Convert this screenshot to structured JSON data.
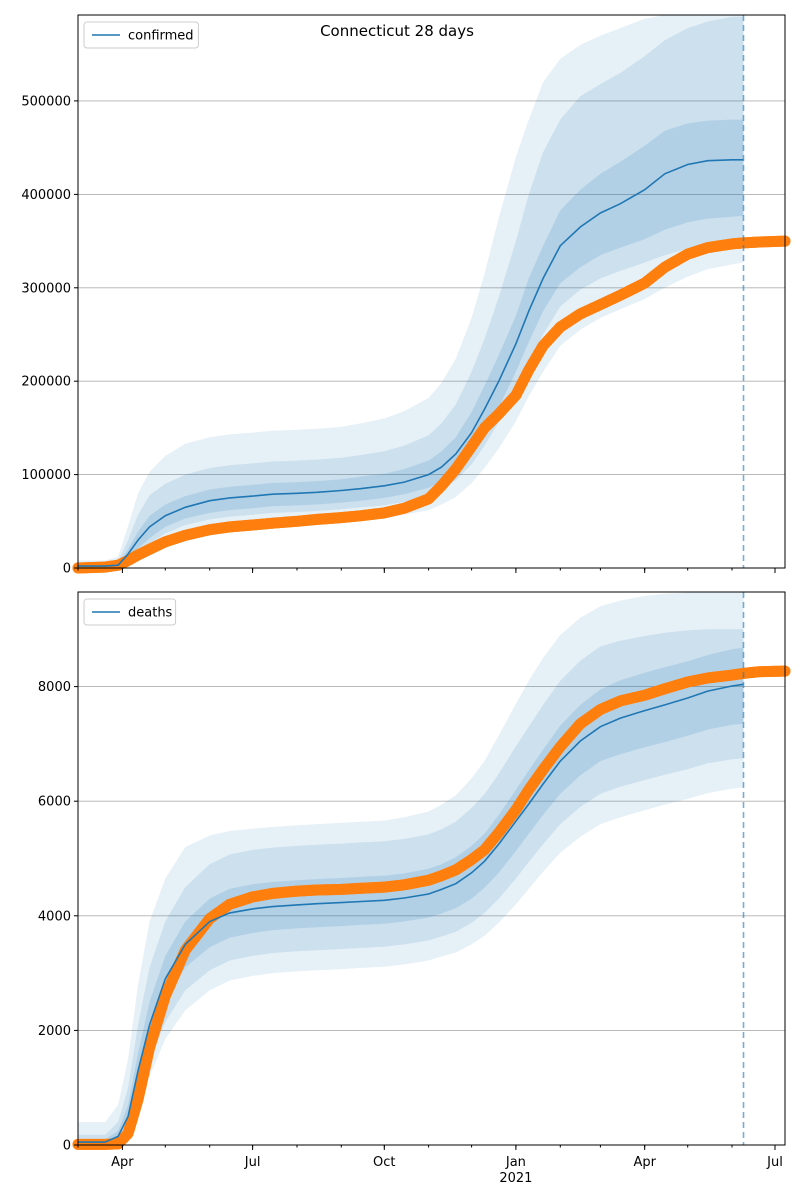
{
  "chart_data": [
    {
      "type": "line",
      "title": "Connecticut 28 days",
      "xlabel": "",
      "ylabel": "",
      "xlim": [
        "2020-03-01",
        "2021-07-08"
      ],
      "ylim": [
        0,
        592000
      ],
      "grid": "horizontal",
      "legend": {
        "position": "top-left",
        "entries": [
          "confirmed"
        ]
      },
      "x_ticks": [
        {
          "label": "Apr",
          "date": "2020-04-01"
        },
        {
          "label": "Jul",
          "date": "2020-07-01"
        },
        {
          "label": "Oct",
          "date": "2020-10-01"
        },
        {
          "label": "Jan",
          "date": "2021-01-01"
        },
        {
          "label": "Apr",
          "date": "2021-04-01"
        },
        {
          "label": "Jul",
          "date": "2021-07-01"
        }
      ],
      "x_tick_labels_shown": false,
      "y_ticks": [
        {
          "label": "0",
          "value": 0
        },
        {
          "label": "100000",
          "value": 100000
        },
        {
          "label": "200000",
          "value": 200000
        },
        {
          "label": "300000",
          "value": 300000
        },
        {
          "label": "400000",
          "value": 400000
        },
        {
          "label": "500000",
          "value": 500000
        }
      ],
      "forecast_start": "2021-06-09",
      "colors": {
        "model": "#1f77b4",
        "observed": "#ff7f0e"
      },
      "model": {
        "name": "confirmed",
        "x": [
          "2020-03-01",
          "2020-03-20",
          "2020-03-29",
          "2020-04-05",
          "2020-04-12",
          "2020-04-20",
          "2020-05-01",
          "2020-05-15",
          "2020-06-01",
          "2020-06-15",
          "2020-07-01",
          "2020-07-15",
          "2020-08-01",
          "2020-08-15",
          "2020-09-01",
          "2020-09-15",
          "2020-10-01",
          "2020-10-15",
          "2020-11-01",
          "2020-11-10",
          "2020-11-20",
          "2020-12-01",
          "2020-12-10",
          "2020-12-20",
          "2021-01-01",
          "2021-01-10",
          "2021-01-20",
          "2021-02-01",
          "2021-02-15",
          "2021-03-01",
          "2021-03-15",
          "2021-04-01",
          "2021-04-15",
          "2021-05-01",
          "2021-05-15",
          "2021-06-01",
          "2021-06-09"
        ],
        "median": [
          2000,
          2000,
          3000,
          15000,
          30000,
          44000,
          56000,
          65000,
          72000,
          75000,
          77000,
          79000,
          80000,
          81000,
          83000,
          85000,
          88000,
          92000,
          100000,
          108000,
          122000,
          145000,
          170000,
          200000,
          240000,
          275000,
          310000,
          345000,
          365000,
          380000,
          390000,
          405000,
          422000,
          432000,
          436000,
          437000,
          437000
        ],
        "band50_low": [
          1000,
          1000,
          2000,
          10000,
          21000,
          32000,
          44000,
          53000,
          59000,
          62000,
          64000,
          66000,
          67000,
          68000,
          70000,
          72000,
          75000,
          79000,
          86000,
          93000,
          104000,
          123000,
          145000,
          172000,
          210000,
          242000,
          275000,
          305000,
          322000,
          335000,
          343000,
          352000,
          362000,
          370000,
          374000,
          376000,
          377000
        ],
        "band50_high": [
          3000,
          3000,
          4000,
          20000,
          39000,
          56000,
          68000,
          77000,
          84000,
          87000,
          89000,
          91000,
          92000,
          93000,
          95000,
          98000,
          101000,
          106000,
          115000,
          125000,
          140000,
          167000,
          195000,
          228000,
          270000,
          310000,
          345000,
          383000,
          405000,
          422000,
          435000,
          452000,
          468000,
          476000,
          479000,
          480000,
          480000
        ],
        "band80_low": [
          500,
          500,
          1000,
          8000,
          17000,
          26000,
          37000,
          46000,
          52000,
          55000,
          57000,
          59000,
          60000,
          61000,
          63000,
          65000,
          67000,
          71000,
          77000,
          84000,
          94000,
          111000,
          131000,
          156000,
          190000,
          220000,
          250000,
          280000,
          298000,
          310000,
          318000,
          327000,
          335000,
          342000,
          345000,
          347000,
          347000
        ],
        "band80_high": [
          5000,
          5000,
          7000,
          30000,
          57000,
          78000,
          90000,
          100000,
          107000,
          110000,
          112000,
          114000,
          115000,
          116000,
          118000,
          121000,
          125000,
          131000,
          142000,
          155000,
          175000,
          210000,
          245000,
          290000,
          350000,
          400000,
          445000,
          480000,
          505000,
          518000,
          530000,
          548000,
          565000,
          578000,
          585000,
          590000,
          590000
        ],
        "band95_low": [
          0,
          0,
          500,
          5000,
          12000,
          20000,
          28000,
          35000,
          40000,
          42000,
          44000,
          46000,
          47000,
          48000,
          50000,
          52000,
          54000,
          57000,
          62000,
          68000,
          76000,
          91000,
          107000,
          128000,
          157000,
          184000,
          210000,
          238000,
          255000,
          268000,
          277000,
          288000,
          300000,
          312000,
          320000,
          325000,
          327000
        ],
        "band95_high": [
          8000,
          8000,
          12000,
          45000,
          80000,
          103000,
          120000,
          133000,
          140000,
          143000,
          145000,
          147000,
          148000,
          149000,
          151000,
          155000,
          160000,
          168000,
          182000,
          198000,
          224000,
          268000,
          315000,
          375000,
          440000,
          480000,
          520000,
          545000,
          560000,
          570000,
          578000,
          588000,
          592000,
          592000,
          592000,
          592000,
          592000
        ]
      },
      "observed": {
        "x": [
          "2020-03-01",
          "2020-03-20",
          "2020-03-29",
          "2020-04-05",
          "2020-04-12",
          "2020-04-20",
          "2020-05-01",
          "2020-05-15",
          "2020-06-01",
          "2020-06-15",
          "2020-07-01",
          "2020-07-15",
          "2020-08-01",
          "2020-08-15",
          "2020-09-01",
          "2020-09-15",
          "2020-10-01",
          "2020-10-15",
          "2020-11-01",
          "2020-11-10",
          "2020-11-20",
          "2020-12-01",
          "2020-12-10",
          "2020-12-20",
          "2021-01-01",
          "2021-01-10",
          "2021-01-20",
          "2021-02-01",
          "2021-02-15",
          "2021-03-01",
          "2021-03-15",
          "2021-04-01",
          "2021-04-15",
          "2021-05-01",
          "2021-05-15",
          "2021-06-01",
          "2021-06-09",
          "2021-06-20",
          "2021-07-08"
        ],
        "y": [
          0,
          1000,
          3000,
          8000,
          14000,
          20000,
          28000,
          35000,
          41000,
          44000,
          46000,
          48000,
          50000,
          52000,
          54000,
          56000,
          59000,
          64000,
          74000,
          88000,
          106000,
          130000,
          150000,
          165000,
          185000,
          212000,
          238000,
          258000,
          272000,
          282000,
          292000,
          305000,
          322000,
          336000,
          343000,
          347000,
          348000,
          349000,
          350000
        ]
      }
    },
    {
      "type": "line",
      "title": "",
      "xlabel": "",
      "ylabel": "",
      "xlim": [
        "2020-03-01",
        "2021-07-08"
      ],
      "ylim": [
        0,
        9650
      ],
      "grid": "horizontal",
      "legend": {
        "position": "top-left",
        "entries": [
          "deaths"
        ]
      },
      "x_ticks": [
        {
          "label": "Apr",
          "date": "2020-04-01"
        },
        {
          "label": "Jul",
          "date": "2020-07-01"
        },
        {
          "label": "Oct",
          "date": "2020-10-01"
        },
        {
          "label": "Jan",
          "date": "2021-01-01"
        },
        {
          "label": "Apr",
          "date": "2021-04-01"
        },
        {
          "label": "Jul",
          "date": "2021-07-01"
        }
      ],
      "x_tick_labels_shown": true,
      "x_year_label": {
        "label": "2021",
        "date": "2021-01-01"
      },
      "y_ticks": [
        {
          "label": "0",
          "value": 0
        },
        {
          "label": "2000",
          "value": 2000
        },
        {
          "label": "4000",
          "value": 4000
        },
        {
          "label": "6000",
          "value": 6000
        },
        {
          "label": "8000",
          "value": 8000
        }
      ],
      "forecast_start": "2021-06-09",
      "colors": {
        "model": "#1f77b4",
        "observed": "#ff7f0e"
      },
      "model": {
        "name": "deaths",
        "x": [
          "2020-03-01",
          "2020-03-20",
          "2020-03-29",
          "2020-04-05",
          "2020-04-12",
          "2020-04-20",
          "2020-05-01",
          "2020-05-15",
          "2020-06-01",
          "2020-06-15",
          "2020-07-01",
          "2020-07-15",
          "2020-08-01",
          "2020-08-15",
          "2020-09-01",
          "2020-09-15",
          "2020-10-01",
          "2020-10-15",
          "2020-11-01",
          "2020-11-10",
          "2020-11-20",
          "2020-12-01",
          "2020-12-10",
          "2020-12-20",
          "2021-01-01",
          "2021-01-10",
          "2021-01-20",
          "2021-02-01",
          "2021-02-15",
          "2021-03-01",
          "2021-03-15",
          "2021-04-01",
          "2021-04-15",
          "2021-05-01",
          "2021-05-15",
          "2021-06-01",
          "2021-06-09"
        ],
        "median": [
          50,
          50,
          150,
          500,
          1300,
          2100,
          2900,
          3500,
          3900,
          4050,
          4120,
          4160,
          4190,
          4210,
          4230,
          4250,
          4270,
          4310,
          4380,
          4460,
          4560,
          4750,
          4950,
          5250,
          5650,
          5950,
          6300,
          6700,
          7050,
          7300,
          7450,
          7580,
          7680,
          7800,
          7920,
          8010,
          8040
        ],
        "band50_low": [
          30,
          30,
          100,
          350,
          1050,
          1750,
          2500,
          3100,
          3450,
          3620,
          3700,
          3750,
          3780,
          3800,
          3820,
          3840,
          3860,
          3900,
          3970,
          4040,
          4130,
          4300,
          4490,
          4750,
          5130,
          5430,
          5760,
          6130,
          6450,
          6700,
          6820,
          6940,
          7030,
          7140,
          7250,
          7330,
          7350
        ],
        "band50_high": [
          100,
          100,
          250,
          700,
          1600,
          2500,
          3300,
          3900,
          4300,
          4470,
          4550,
          4590,
          4620,
          4640,
          4660,
          4680,
          4700,
          4740,
          4820,
          4900,
          5020,
          5220,
          5430,
          5760,
          6200,
          6540,
          6900,
          7320,
          7680,
          7950,
          8110,
          8240,
          8340,
          8440,
          8550,
          8650,
          8680
        ],
        "band80_low": [
          10,
          10,
          60,
          250,
          850,
          1450,
          2150,
          2700,
          3050,
          3220,
          3300,
          3350,
          3380,
          3400,
          3420,
          3440,
          3460,
          3500,
          3570,
          3640,
          3720,
          3880,
          4050,
          4300,
          4650,
          4940,
          5250,
          5600,
          5900,
          6130,
          6250,
          6370,
          6460,
          6560,
          6660,
          6730,
          6750
        ],
        "band80_high": [
          180,
          180,
          400,
          1000,
          2100,
          3100,
          3900,
          4500,
          4900,
          5070,
          5150,
          5190,
          5220,
          5240,
          5260,
          5280,
          5300,
          5340,
          5420,
          5510,
          5640,
          5880,
          6120,
          6480,
          6960,
          7300,
          7680,
          8100,
          8450,
          8700,
          8800,
          8880,
          8940,
          8980,
          9000,
          9000,
          9000
        ],
        "band95_low": [
          0,
          0,
          20,
          150,
          650,
          1200,
          1850,
          2350,
          2700,
          2870,
          2950,
          3000,
          3030,
          3050,
          3070,
          3090,
          3110,
          3150,
          3220,
          3290,
          3360,
          3500,
          3650,
          3880,
          4200,
          4470,
          4770,
          5100,
          5380,
          5600,
          5720,
          5840,
          5940,
          6040,
          6140,
          6220,
          6240
        ],
        "band95_high": [
          400,
          400,
          700,
          1500,
          2800,
          3900,
          4650,
          5200,
          5400,
          5480,
          5520,
          5550,
          5580,
          5600,
          5620,
          5640,
          5660,
          5720,
          5820,
          5940,
          6100,
          6400,
          6700,
          7150,
          7700,
          8100,
          8500,
          8900,
          9200,
          9400,
          9500,
          9580,
          9620,
          9640,
          9650,
          9650,
          9650
        ]
      },
      "observed": {
        "x": [
          "2020-03-01",
          "2020-03-20",
          "2020-03-29",
          "2020-04-05",
          "2020-04-12",
          "2020-04-20",
          "2020-05-01",
          "2020-05-15",
          "2020-06-01",
          "2020-06-15",
          "2020-07-01",
          "2020-07-15",
          "2020-08-01",
          "2020-08-15",
          "2020-09-01",
          "2020-09-15",
          "2020-10-01",
          "2020-10-15",
          "2020-11-01",
          "2020-11-10",
          "2020-11-20",
          "2020-12-01",
          "2020-12-10",
          "2020-12-20",
          "2021-01-01",
          "2021-01-10",
          "2021-01-20",
          "2021-02-01",
          "2021-02-15",
          "2021-03-01",
          "2021-03-15",
          "2021-04-01",
          "2021-04-15",
          "2021-05-01",
          "2021-05-15",
          "2021-06-01",
          "2021-06-09",
          "2021-06-20",
          "2021-07-08"
        ],
        "y": [
          10,
          10,
          20,
          200,
          800,
          1700,
          2600,
          3400,
          3950,
          4200,
          4330,
          4390,
          4430,
          4450,
          4460,
          4480,
          4500,
          4540,
          4620,
          4700,
          4800,
          4980,
          5150,
          5450,
          5850,
          6200,
          6550,
          6950,
          7350,
          7600,
          7750,
          7850,
          7960,
          8080,
          8150,
          8200,
          8230,
          8260,
          8270
        ]
      }
    }
  ]
}
